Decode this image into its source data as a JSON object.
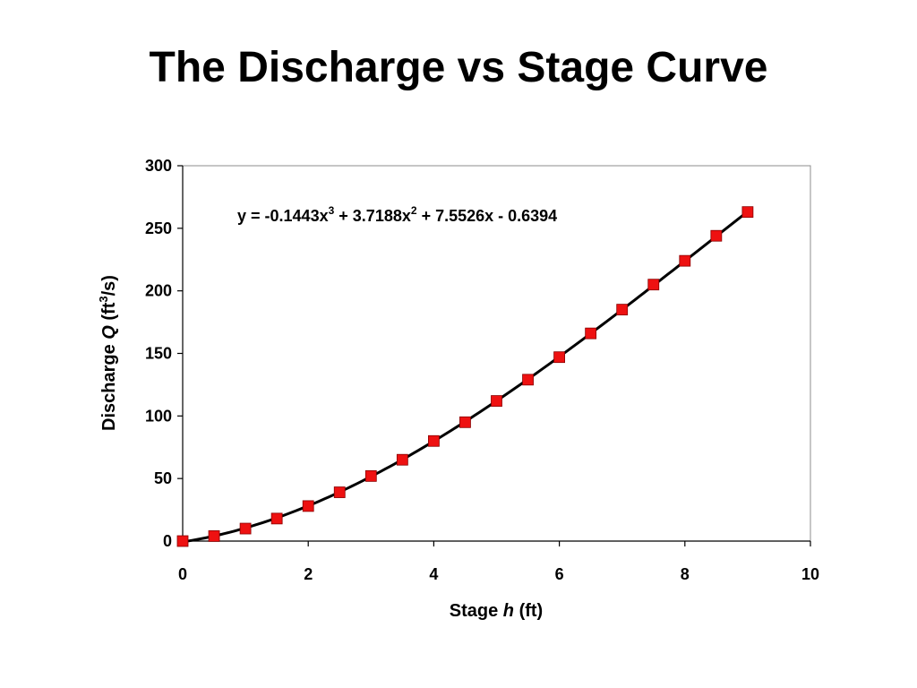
{
  "slide": {
    "title": "The Discharge vs Stage Curve"
  },
  "chart_data": {
    "type": "scatter",
    "xlabel": "Stage h (ft)",
    "xlabel_parts": {
      "prefix": "Stage ",
      "variable": "h",
      "suffix": " (ft)"
    },
    "ylabel": "Discharge Q (ft3/s)",
    "ylabel_parts": {
      "prefix": "Discharge ",
      "variable": "Q",
      "unit_open": " (ft",
      "unit_sup": "3",
      "unit_close": "/s)"
    },
    "xlim": [
      0,
      10
    ],
    "ylim": [
      0,
      300
    ],
    "xticks": [
      0,
      2,
      4,
      6,
      8,
      10
    ],
    "yticks": [
      0,
      50,
      100,
      150,
      200,
      250,
      300
    ],
    "grid": false,
    "legend": "none",
    "series": [
      {
        "marker": "square",
        "color": "#ee1111",
        "x": [
          0,
          0.5,
          1,
          1.5,
          2,
          2.5,
          3,
          3.5,
          4,
          4.5,
          5,
          5.5,
          6,
          6.5,
          7,
          7.5,
          8,
          8.5,
          9
        ],
        "y": [
          0,
          4,
          10,
          18,
          28,
          39,
          52,
          65,
          80,
          95,
          112,
          129,
          147,
          166,
          185,
          205,
          224,
          244,
          263
        ]
      }
    ],
    "trendline": {
      "type": "polynomial",
      "order": 3,
      "color": "#000000",
      "coefficients": [
        -0.1443,
        3.7188,
        7.5526,
        -0.6394
      ],
      "equation_parts": [
        "y = -0.1443x",
        "3",
        " + 3.7188x",
        "2",
        " + 7.5526x - 0.6394"
      ]
    }
  }
}
